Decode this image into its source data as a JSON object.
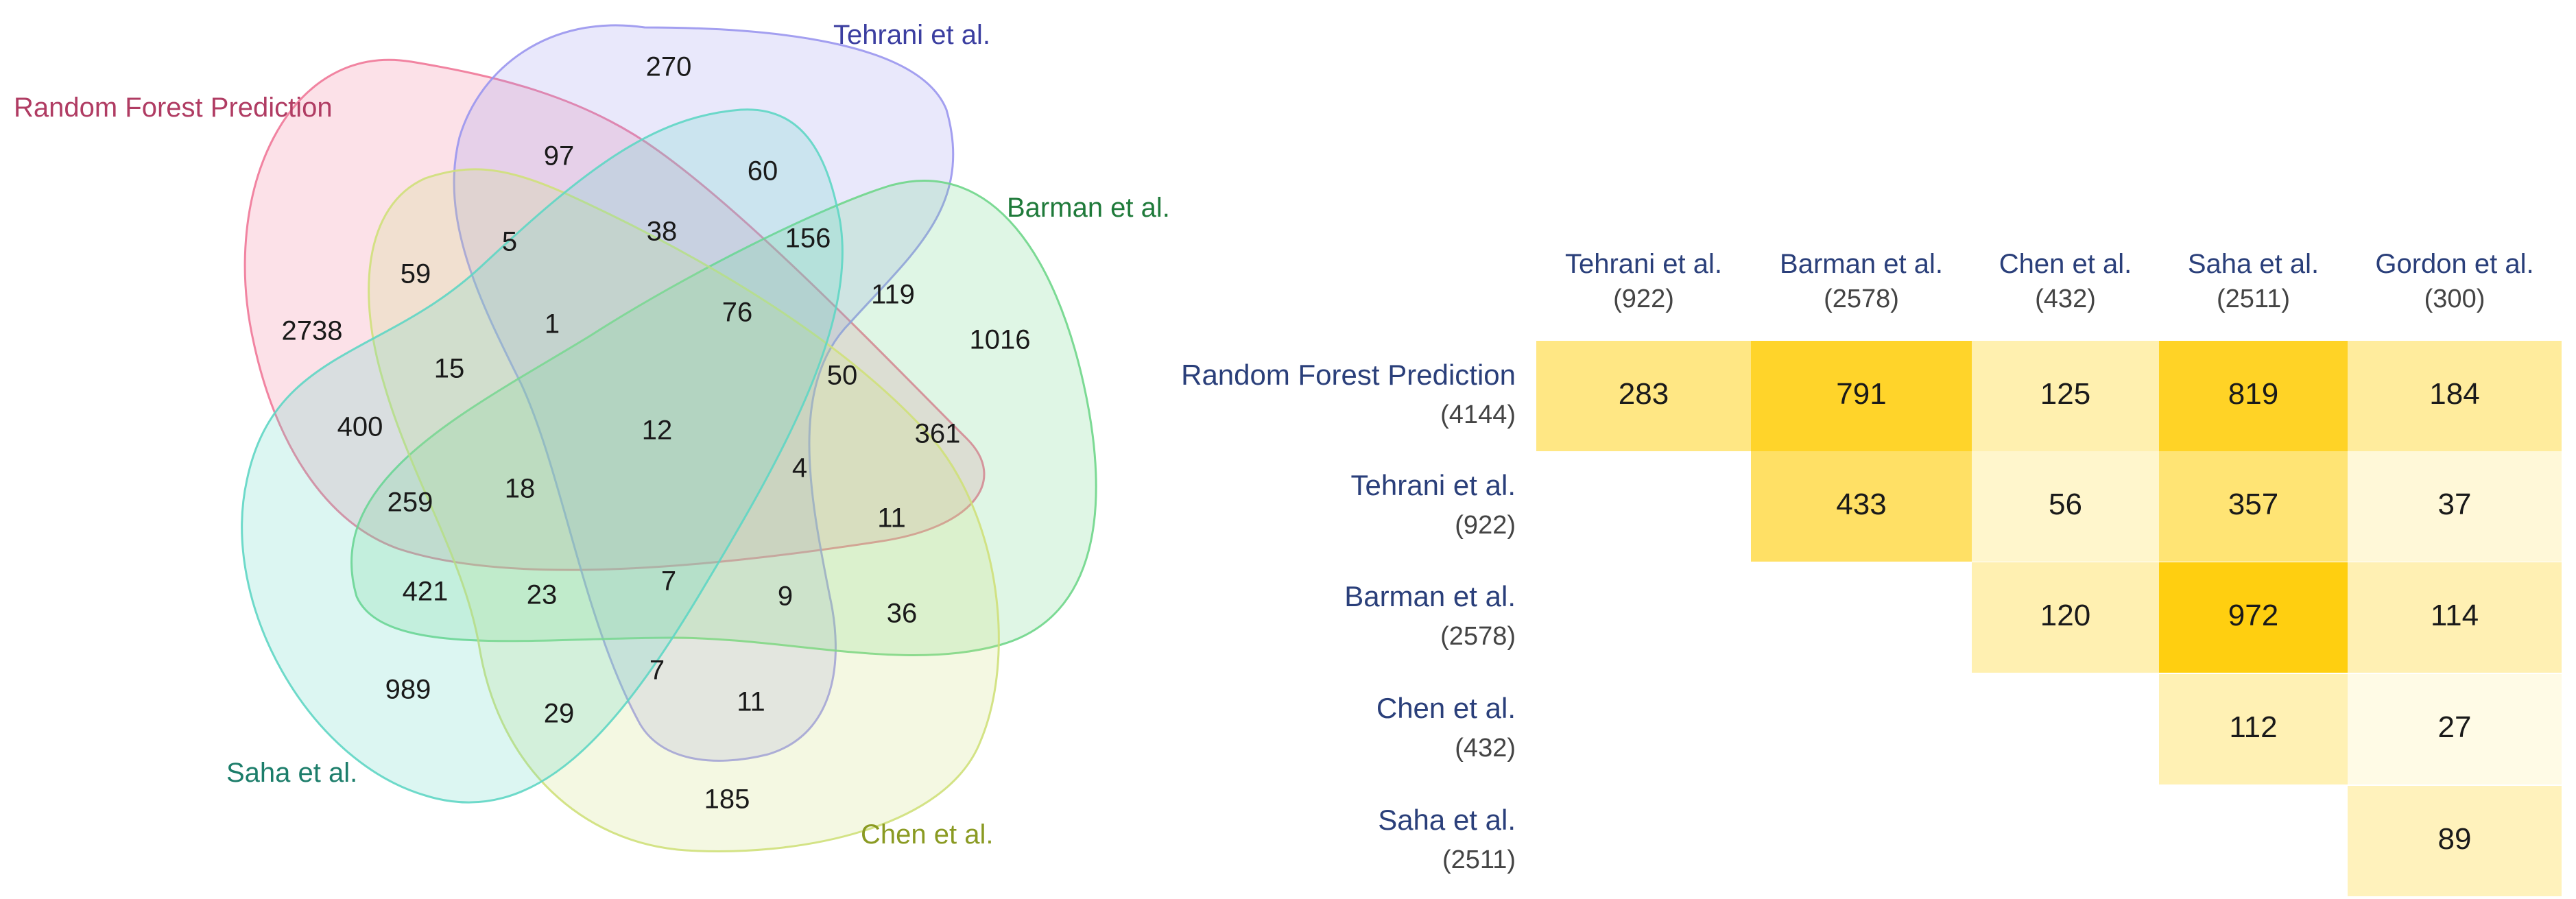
{
  "venn": {
    "sets": [
      {
        "label": "Random Forest Prediction",
        "color": "#f07898",
        "text_color": "#b03c63"
      },
      {
        "label": "Tehrani et al.",
        "color": "#9a96ee",
        "text_color": "#3b3ea0"
      },
      {
        "label": "Barman et al.",
        "color": "#6fd68a",
        "text_color": "#1f7a3a"
      },
      {
        "label": "Chen et al.",
        "color": "#cfe07a",
        "text_color": "#8a9a22"
      },
      {
        "label": "Saha et al.",
        "color": "#5fd6c4",
        "text_color": "#1c7d6a"
      }
    ],
    "region_values": [
      "270",
      "97",
      "60",
      "5",
      "38",
      "156",
      "59",
      "119",
      "2738",
      "1",
      "76",
      "1016",
      "15",
      "50",
      "400",
      "12",
      "361",
      "4",
      "259",
      "18",
      "11",
      "421",
      "23",
      "7",
      "9",
      "36",
      "989",
      "7",
      "11",
      "29",
      "185"
    ]
  },
  "matrix": {
    "columns": [
      {
        "name": "Tehrani et al.",
        "count": "(922)"
      },
      {
        "name": "Barman et al.",
        "count": "(2578)"
      },
      {
        "name": "Chen et al.",
        "count": "(432)"
      },
      {
        "name": "Saha et al.",
        "count": "(2511)"
      },
      {
        "name": "Gordon et al.",
        "count": "(300)"
      }
    ],
    "rows": [
      {
        "name": "Random Forest Prediction",
        "count": "(4144)",
        "cells": [
          283,
          791,
          125,
          819,
          184
        ]
      },
      {
        "name": "Tehrani et al.",
        "count": "(922)",
        "cells": [
          null,
          433,
          56,
          357,
          37
        ]
      },
      {
        "name": "Barman et al.",
        "count": "(2578)",
        "cells": [
          null,
          null,
          120,
          972,
          114
        ]
      },
      {
        "name": "Chen et al.",
        "count": "(432)",
        "cells": [
          null,
          null,
          null,
          112,
          27
        ]
      },
      {
        "name": "Saha et al.",
        "count": "(2511)",
        "cells": [
          null,
          null,
          null,
          null,
          89
        ]
      }
    ],
    "color_low": "#fffbe6",
    "color_high": "#ffcf10",
    "header_color": "#2a3f7a",
    "count_color": "#444444"
  }
}
